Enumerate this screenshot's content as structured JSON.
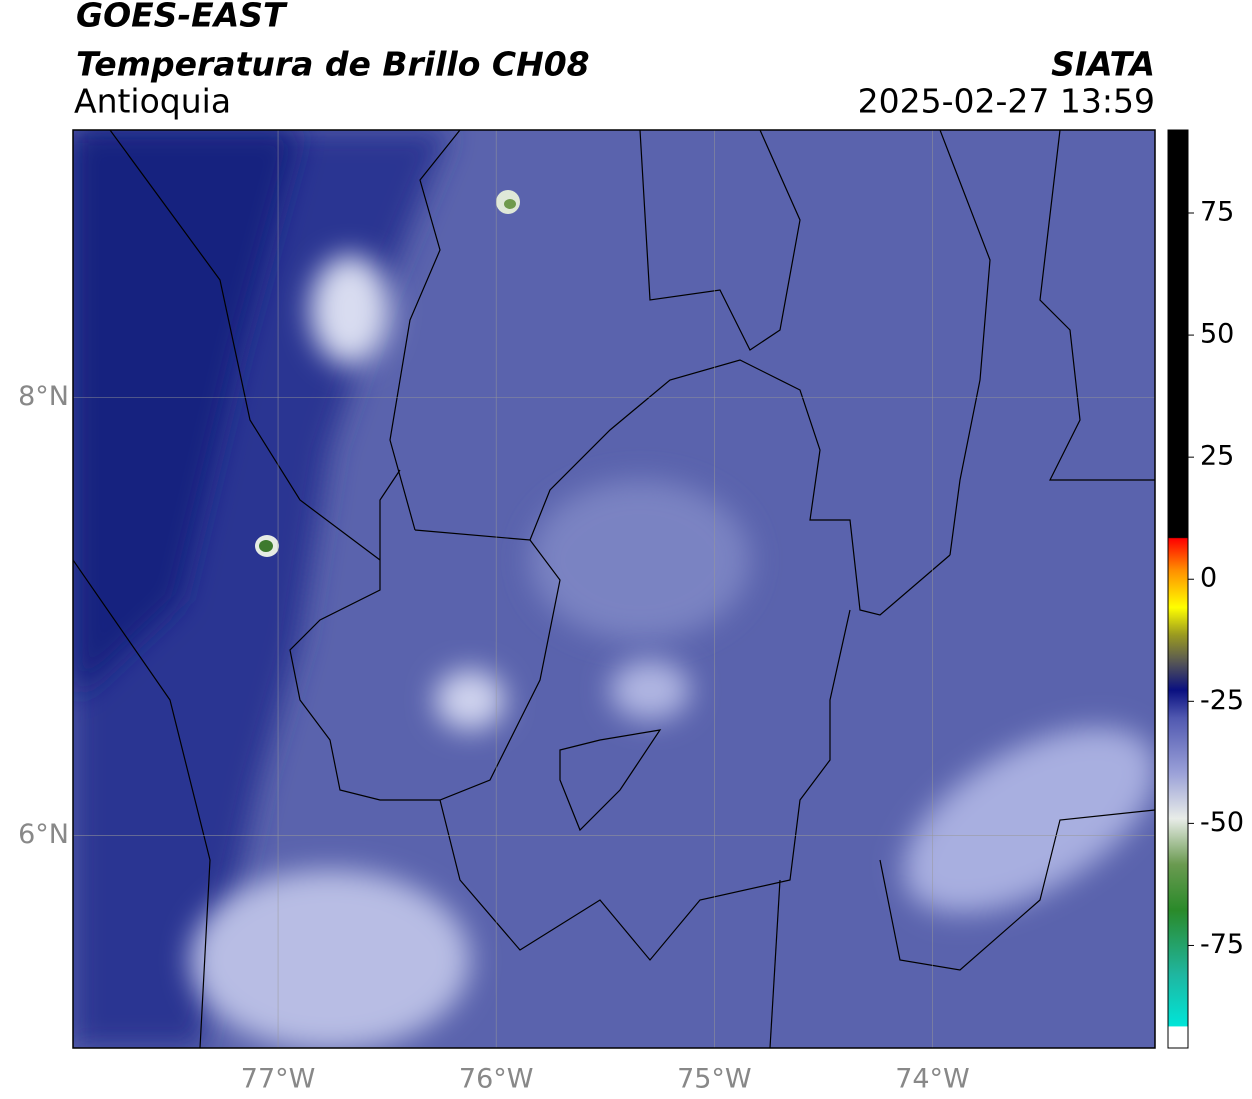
{
  "header": {
    "line1": "GOES-EAST",
    "line2": "Temperatura de Brillo CH08",
    "region": "Antioquia",
    "source": "SIATA",
    "datetime": "2025-02-27 13:59"
  },
  "map": {
    "lonlim": [
      -77.94,
      -72.98
    ],
    "latlim": [
      5.03,
      9.22
    ],
    "lon_ticks": [
      {
        "value": -77,
        "label": "77°W"
      },
      {
        "value": -76,
        "label": "76°W"
      },
      {
        "value": -75,
        "label": "75°W"
      },
      {
        "value": -74,
        "label": "74°W"
      }
    ],
    "lat_ticks": [
      {
        "value": 8,
        "label": "8°N"
      },
      {
        "value": 6,
        "label": "6°N"
      }
    ]
  },
  "colorbar": {
    "lim": [
      -96,
      92
    ],
    "ticks": [
      75,
      50,
      25,
      0,
      -25,
      -50,
      -75
    ]
  }
}
